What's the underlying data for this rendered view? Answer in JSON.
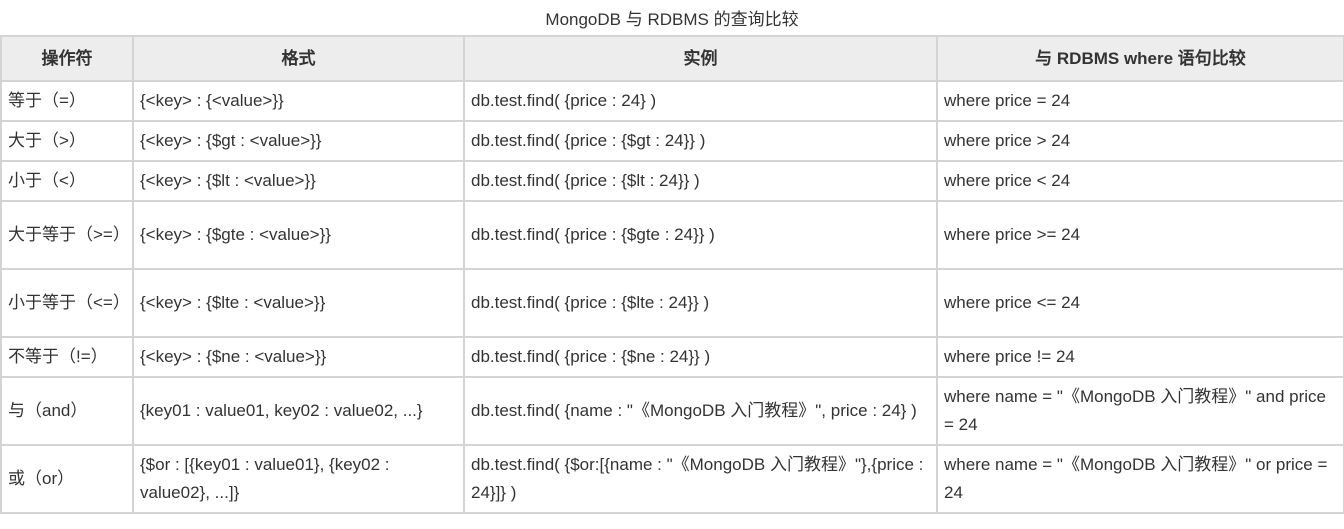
{
  "caption": "MongoDB 与 RDBMS 的查询比较",
  "headers": [
    "操作符",
    "格式",
    "实例",
    "与 RDBMS where 语句比较"
  ],
  "rows": [
    {
      "op": "等于（=）",
      "format": "{<key> : {<value>}}",
      "example": "db.test.find( {price : 24} )",
      "rdbms": "where price = 24"
    },
    {
      "op": "大于（>）",
      "format": "{<key> : {$gt : <value>}}",
      "example": "db.test.find( {price : {$gt : 24}} )",
      "rdbms": "where price > 24"
    },
    {
      "op": "小于（<）",
      "format": "{<key> : {$lt : <value>}}",
      "example": "db.test.find( {price : {$lt : 24}} )",
      "rdbms": "where price < 24"
    },
    {
      "op": "大于等于（>=）",
      "format": "{<key> : {$gte : <value>}}",
      "example": "db.test.find( {price : {$gte : 24}} )",
      "rdbms": "where price >= 24"
    },
    {
      "op": "小于等于（<=）",
      "format": "{<key> : {$lte : <value>}}",
      "example": "db.test.find( {price : {$lte : 24}} )",
      "rdbms": "where price <= 24"
    },
    {
      "op": "不等于（!=）",
      "format": "{<key> : {$ne : <value>}}",
      "example": "db.test.find( {price : {$ne : 24}} )",
      "rdbms": "where price != 24"
    },
    {
      "op": "与（and）",
      "format": "{key01 : value01, key02 : value02, ...}",
      "example": "db.test.find( {name : \"《MongoDB 入门教程》\", price : 24} )",
      "rdbms": "where name = \"《MongoDB 入门教程》\" and price = 24"
    },
    {
      "op": "或（or）",
      "format": "{$or : [{key01 : value01}, {key02 : value02}, ...]}",
      "example": "db.test.find( {$or:[{name : \"《MongoDB 入门教程》\"},{price : 24}]} )",
      "rdbms": "where name = \"《MongoDB 入门教程》\" or price = 24"
    }
  ]
}
